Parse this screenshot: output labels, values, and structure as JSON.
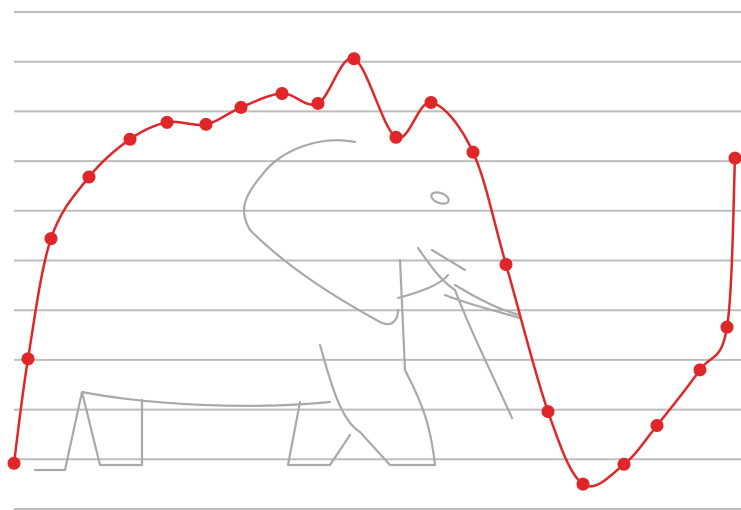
{
  "chart_data": {
    "type": "line",
    "x": [
      14,
      28,
      51,
      89,
      130,
      167,
      206,
      241,
      282,
      318,
      354,
      396,
      431,
      473,
      506,
      548,
      583,
      624,
      657,
      700,
      727,
      735
    ],
    "series": [
      {
        "color": "#e02628",
        "values": [
          -0.08,
          2.02,
          4.44,
          5.68,
          6.44,
          6.78,
          6.74,
          7.08,
          7.36,
          7.16,
          8.06,
          6.48,
          7.18,
          6.18,
          3.92,
          0.96,
          -0.5,
          -0.1,
          0.68,
          1.8,
          2.66,
          6.06
        ]
      }
    ],
    "xlim": [
      0,
      741
    ],
    "ylim": [
      -1,
      9
    ],
    "yticks": [
      -1,
      0,
      1,
      2,
      3,
      4,
      5,
      6,
      7,
      8,
      9
    ],
    "grid": true
  }
}
